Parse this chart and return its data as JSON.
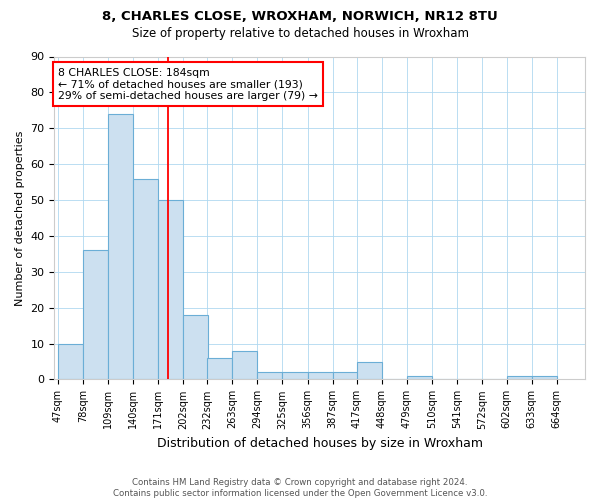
{
  "title1": "8, CHARLES CLOSE, WROXHAM, NORWICH, NR12 8TU",
  "title2": "Size of property relative to detached houses in Wroxham",
  "xlabel": "Distribution of detached houses by size in Wroxham",
  "ylabel": "Number of detached properties",
  "bin_labels": [
    "47sqm",
    "78sqm",
    "109sqm",
    "140sqm",
    "171sqm",
    "202sqm",
    "232sqm",
    "263sqm",
    "294sqm",
    "325sqm",
    "356sqm",
    "387sqm",
    "417sqm",
    "448sqm",
    "479sqm",
    "510sqm",
    "541sqm",
    "572sqm",
    "602sqm",
    "633sqm",
    "664sqm"
  ],
  "bin_left_edges": [
    47,
    78,
    109,
    140,
    171,
    202,
    232,
    263,
    294,
    325,
    356,
    387,
    417,
    448,
    479,
    510,
    541,
    572,
    602,
    633,
    664
  ],
  "bar_heights": [
    10,
    36,
    74,
    56,
    50,
    18,
    6,
    8,
    2,
    2,
    2,
    2,
    5,
    0,
    1,
    0,
    0,
    0,
    1,
    1
  ],
  "bar_color": "#cce0f0",
  "bar_edge_color": "#6baed6",
  "red_line_x": 184,
  "annotation_title": "8 CHARLES CLOSE: 184sqm",
  "annotation_line1": "← 71% of detached houses are smaller (193)",
  "annotation_line2": "29% of semi-detached houses are larger (79) →",
  "ylim_max": 90,
  "yticks": [
    0,
    10,
    20,
    30,
    40,
    50,
    60,
    70,
    80,
    90
  ],
  "footnote1": "Contains HM Land Registry data © Crown copyright and database right 2024.",
  "footnote2": "Contains public sector information licensed under the Open Government Licence v3.0.",
  "title1_fontsize": 9.5,
  "title2_fontsize": 8.5,
  "ylabel_fontsize": 8,
  "xlabel_fontsize": 9,
  "tick_fontsize": 7,
  "ytick_fontsize": 8,
  "footnote_fontsize": 6.2,
  "annot_fontsize": 7.8
}
